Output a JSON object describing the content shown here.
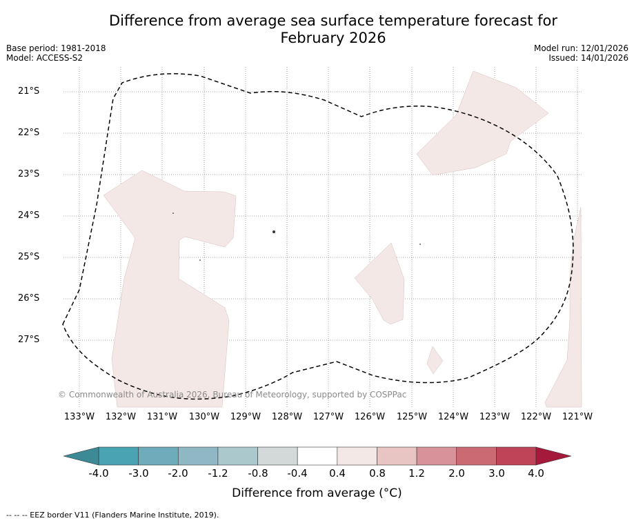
{
  "title_line1": "Difference from average sea surface temperature forecast for",
  "title_line2": "February 2026",
  "base_period": "Base period: 1981-2018",
  "model": "Model: ACCESS-S2",
  "model_run": "Model run: 12/01/2026",
  "issued": "Issued: 14/01/2026",
  "lat_labels": [
    "21°S",
    "22°S",
    "23°S",
    "24°S",
    "25°S",
    "26°S",
    "27°S"
  ],
  "lon_labels": [
    "133°W",
    "132°W",
    "131°W",
    "130°W",
    "129°W",
    "128°W",
    "127°W",
    "126°W",
    "125°W",
    "124°W",
    "123°W",
    "122°W",
    "121°W"
  ],
  "copyright": "© Commonwealth of Australia 2026, Bureau of Meteorology, supported by COSPPac",
  "colorbar": {
    "title": "Difference from average (°C)",
    "ticks": [
      "-4.0",
      "-3.0",
      "-2.0",
      "-1.2",
      "-0.8",
      "-0.4",
      "0.4",
      "0.8",
      "1.2",
      "2.0",
      "3.0",
      "4.0"
    ],
    "colors": [
      "#3c8a96",
      "#4aa3b2",
      "#6eacbb",
      "#8fb8c4",
      "#abc8cc",
      "#d3d9d9",
      "#ffffff",
      "#f4e8e6",
      "#e8c5c2",
      "#d8929a",
      "#cc6a74",
      "#bf4458",
      "#a5193a"
    ]
  },
  "legend_text": "--  --  -- EEZ border V11 (Flanders Marine Institute, 2019).",
  "shading_color": "#f4e8e6"
}
